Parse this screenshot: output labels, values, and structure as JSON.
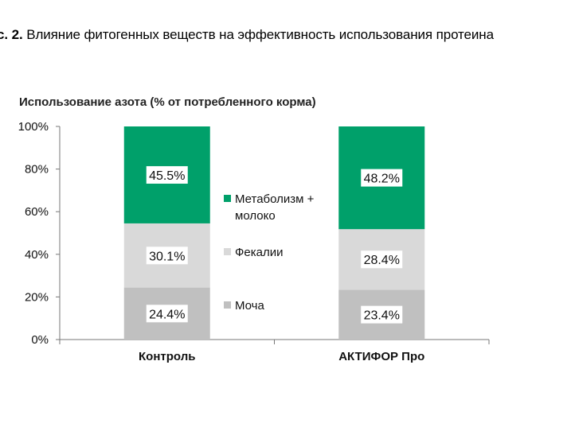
{
  "figure": {
    "label": "с. 2.",
    "caption": "Влияние фитогенных веществ на эффективность использования протеина"
  },
  "chart_data": {
    "type": "bar",
    "stacked": true,
    "title": "Использование азота (% от потребленного корма)",
    "categories": [
      "Контроль",
      "АКТИФОР Про"
    ],
    "series": [
      {
        "name": "Моча",
        "values": [
          24.4,
          23.4
        ],
        "labels": [
          "24.4%",
          "23.4%"
        ],
        "color": "#c0c0c0"
      },
      {
        "name": "Фекалии",
        "values": [
          30.1,
          28.4
        ],
        "labels": [
          "30.1%",
          "28.4%"
        ],
        "color": "#d9d9d9"
      },
      {
        "name": "Метаболизм + молоко",
        "name_lines": [
          "Метаболизм +",
          "молоко"
        ],
        "values": [
          45.5,
          48.2
        ],
        "labels": [
          "45.5%",
          "48.2%"
        ],
        "color": "#00a06a"
      }
    ],
    "ylim": [
      0,
      100
    ],
    "yticks": [
      0,
      20,
      40,
      60,
      80,
      100
    ],
    "ytick_labels": [
      "0%",
      "20%",
      "40%",
      "60%",
      "80%",
      "100%"
    ],
    "grid": false,
    "legend_position": "center-between-bars"
  }
}
